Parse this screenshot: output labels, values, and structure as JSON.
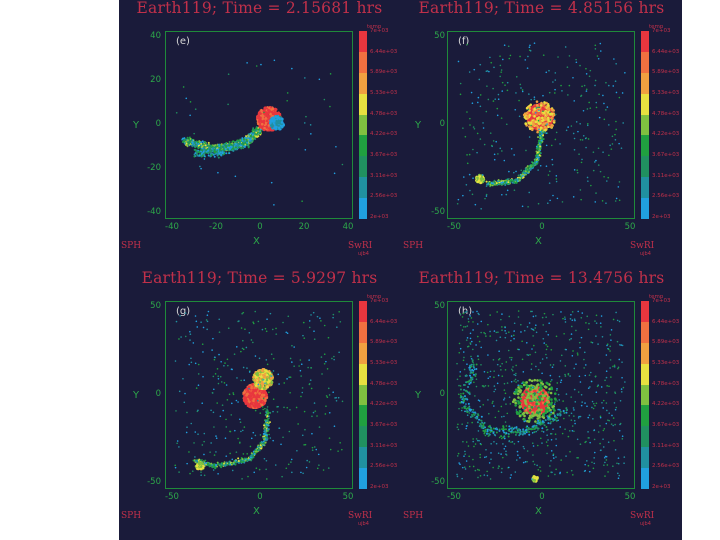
{
  "panels": [
    {
      "title": "Earth119; Time = 2.15681 hrs",
      "label": "(e)",
      "yticks": [
        "40",
        "20",
        "0",
        "-20",
        "-40"
      ],
      "xticks": [
        "-40",
        "-20",
        "0",
        "20",
        "40"
      ]
    },
    {
      "title": "Earth119; Time = 4.85156 hrs",
      "label": "(f)",
      "yticks": [
        "50",
        "0",
        "-50"
      ],
      "xticks": [
        "-50",
        "0",
        "50"
      ]
    },
    {
      "title": "Earth119; Time = 5.9297 hrs",
      "label": "(g)",
      "yticks": [
        "50",
        "0",
        "-50"
      ],
      "xticks": [
        "-50",
        "0",
        "50"
      ]
    },
    {
      "title": "Earth119; Time = 13.4756 hrs",
      "label": "(h)",
      "yticks": [
        "50",
        "0",
        "-50"
      ],
      "xticks": [
        "-50",
        "0",
        "50"
      ]
    }
  ],
  "axis": {
    "xlabel": "X",
    "ylabel": "Y"
  },
  "colorbar": {
    "header": "temp",
    "labels": [
      "7e+03",
      "6.44e+03",
      "5.89e+03",
      "5.33e+03",
      "4.78e+03",
      "4.22e+03",
      "3.67e+03",
      "3.11e+03",
      "2.56e+03",
      "2e+03"
    ],
    "colors": [
      "#e8363e",
      "#f07040",
      "#f0a040",
      "#e8e040",
      "#80c040",
      "#20a040",
      "#209060",
      "#2090a0",
      "#20a0e0"
    ]
  },
  "footer": {
    "left": "SPH",
    "right": "SwRI",
    "right_small": "ujb4"
  }
}
